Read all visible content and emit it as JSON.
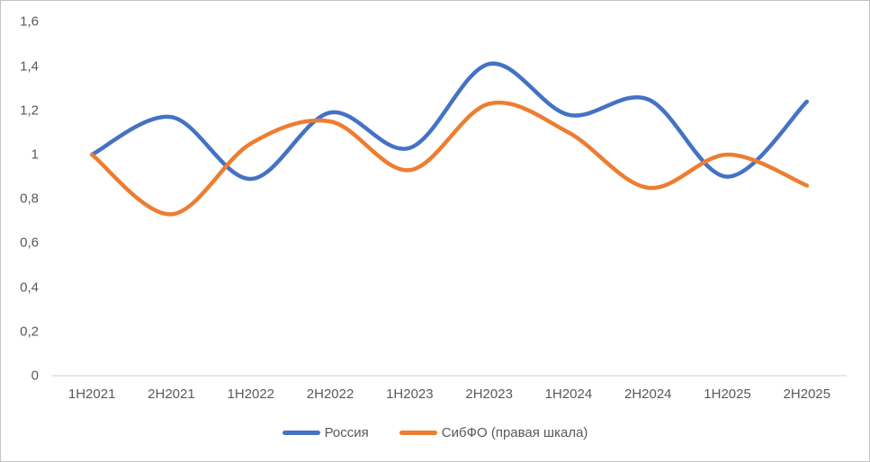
{
  "chart_data": {
    "type": "line",
    "smooth": true,
    "title": "",
    "xlabel": "",
    "ylabel": "",
    "categories": [
      "1H2021",
      "2H2021",
      "1H2022",
      "2H2022",
      "1H2023",
      "2H2023",
      "1H2024",
      "2H2024",
      "1H2025",
      "2H2025"
    ],
    "series": [
      {
        "name": "Россия",
        "color": "#4472C4",
        "values": [
          1.0,
          1.17,
          0.89,
          1.19,
          1.03,
          1.41,
          1.18,
          1.25,
          0.9,
          1.24
        ]
      },
      {
        "name": "СибФО (правая шкала)",
        "color": "#ED7D31",
        "values": [
          1.0,
          0.73,
          1.05,
          1.15,
          0.93,
          1.23,
          1.1,
          0.85,
          1.0,
          0.86
        ]
      }
    ],
    "ylim": [
      0,
      1.6
    ],
    "ytick_step": 0.2,
    "ytick_labels": [
      "0",
      "0,2",
      "0,4",
      "0,6",
      "0,8",
      "1",
      "1,2",
      "1,4",
      "1,6"
    ],
    "grid": false,
    "legend_position": "bottom",
    "axis_color": "#D9D9D9",
    "text_color": "#595959",
    "line_width": 4.5
  }
}
